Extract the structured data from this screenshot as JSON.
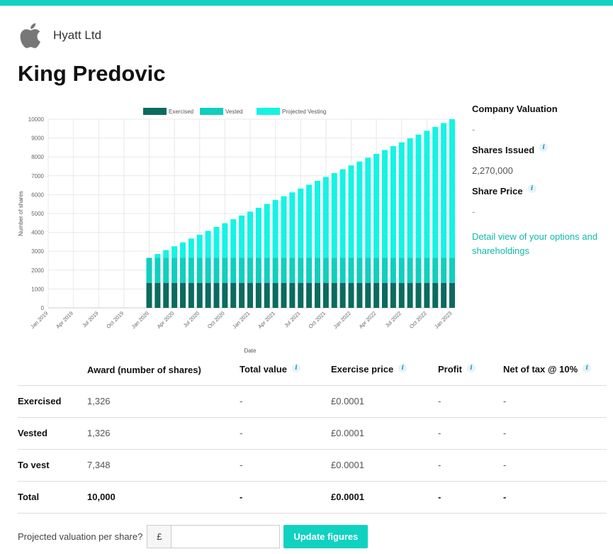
{
  "company": {
    "name": "Hyatt Ltd",
    "logo_icon": "apple-logo-icon"
  },
  "page": {
    "title": "King Predovic"
  },
  "colors": {
    "accent": "#10d2c1",
    "exercised": "#0a6b5e",
    "vested": "#10cfbe",
    "projected": "#14f4e4"
  },
  "side": {
    "company_valuation_label": "Company Valuation",
    "company_valuation_value": "-",
    "shares_issued_label": "Shares Issued",
    "shares_issued_value": "2,270,000",
    "share_price_label": "Share Price",
    "share_price_value": "-",
    "detail_link": "Detail view of your options and shareholdings",
    "info_icon": "i"
  },
  "chart_data": {
    "type": "bar",
    "stacked": true,
    "legend_position": "top",
    "ylabel": "Number of shares",
    "xlabel": "Date",
    "ylim": [
      0,
      10000
    ],
    "yticks": [
      0,
      1000,
      2000,
      3000,
      4000,
      5000,
      6000,
      7000,
      8000,
      9000,
      10000
    ],
    "x_ticks": [
      "Jan 2019",
      "Apr 2019",
      "Jul 2019",
      "Oct 2019",
      "Jan 2020",
      "Apr 2020",
      "Jul 2020",
      "Oct 2020",
      "Jan 2021",
      "Apr 2021",
      "Jul 2021",
      "Oct 2021",
      "Jan 2022",
      "Apr 2022",
      "Jul 2022",
      "Oct 2022",
      "Jan 2023"
    ],
    "categories": [
      "Jan 2020",
      "Feb 2020",
      "Mar 2020",
      "Apr 2020",
      "May 2020",
      "Jun 2020",
      "Jul 2020",
      "Aug 2020",
      "Sep 2020",
      "Oct 2020",
      "Nov 2020",
      "Dec 2020",
      "Jan 2021",
      "Feb 2021",
      "Mar 2021",
      "Apr 2021",
      "May 2021",
      "Jun 2021",
      "Jul 2021",
      "Aug 2021",
      "Sep 2021",
      "Oct 2021",
      "Nov 2021",
      "Dec 2021",
      "Jan 2022",
      "Feb 2022",
      "Mar 2022",
      "Apr 2022",
      "May 2022",
      "Jun 2022",
      "Jul 2022",
      "Aug 2022",
      "Sep 2022",
      "Oct 2022",
      "Nov 2022",
      "Dec 2022",
      "Jan 2023"
    ],
    "series": [
      {
        "name": "Exercised",
        "values": [
          1326,
          1326,
          1326,
          1326,
          1326,
          1326,
          1326,
          1326,
          1326,
          1326,
          1326,
          1326,
          1326,
          1326,
          1326,
          1326,
          1326,
          1326,
          1326,
          1326,
          1326,
          1326,
          1326,
          1326,
          1326,
          1326,
          1326,
          1326,
          1326,
          1326,
          1326,
          1326,
          1326,
          1326,
          1326,
          1326,
          1326
        ]
      },
      {
        "name": "Vested",
        "values": [
          1326,
          1326,
          1326,
          1326,
          1326,
          1326,
          1326,
          1326,
          1326,
          1326,
          1326,
          1326,
          1326,
          1326,
          1326,
          1326,
          1326,
          1326,
          1326,
          1326,
          1326,
          1326,
          1326,
          1326,
          1326,
          1326,
          1326,
          1326,
          1326,
          1326,
          1326,
          1326,
          1326,
          1326,
          1326,
          1326,
          1326
        ]
      },
      {
        "name": "Projected Vesting",
        "values": [
          0,
          204,
          408,
          612,
          816,
          1020,
          1224,
          1428,
          1632,
          1836,
          2041,
          2245,
          2449,
          2653,
          2857,
          3061,
          3265,
          3469,
          3673,
          3877,
          4082,
          4286,
          4490,
          4694,
          4898,
          5102,
          5306,
          5510,
          5714,
          5918,
          6122,
          6327,
          6531,
          6735,
          6939,
          7143,
          7348
        ]
      }
    ]
  },
  "table": {
    "headers": [
      {
        "label": "",
        "info": false
      },
      {
        "label": "Award (number of shares)",
        "info": false
      },
      {
        "label": "Total value",
        "info": true
      },
      {
        "label": "Exercise price",
        "info": true
      },
      {
        "label": "Profit",
        "info": true
      },
      {
        "label": "Net of tax @ 10%",
        "info": true
      }
    ],
    "rows": [
      {
        "label": "Exercised",
        "award": "1,326",
        "total_value": "-",
        "exercise_price": "£0.0001",
        "profit": "-",
        "net_of_tax": "-"
      },
      {
        "label": "Vested",
        "award": "1,326",
        "total_value": "-",
        "exercise_price": "£0.0001",
        "profit": "-",
        "net_of_tax": "-"
      },
      {
        "label": "To vest",
        "award": "7,348",
        "total_value": "-",
        "exercise_price": "£0.0001",
        "profit": "-",
        "net_of_tax": "-"
      },
      {
        "label": "Total",
        "award": "10,000",
        "total_value": "-",
        "exercise_price": "£0.0001",
        "profit": "-",
        "net_of_tax": "-"
      }
    ]
  },
  "valuation": {
    "label": "Projected valuation per share?",
    "currency": "£",
    "input_value": "",
    "input_placeholder": "",
    "button_label": "Update figures"
  }
}
